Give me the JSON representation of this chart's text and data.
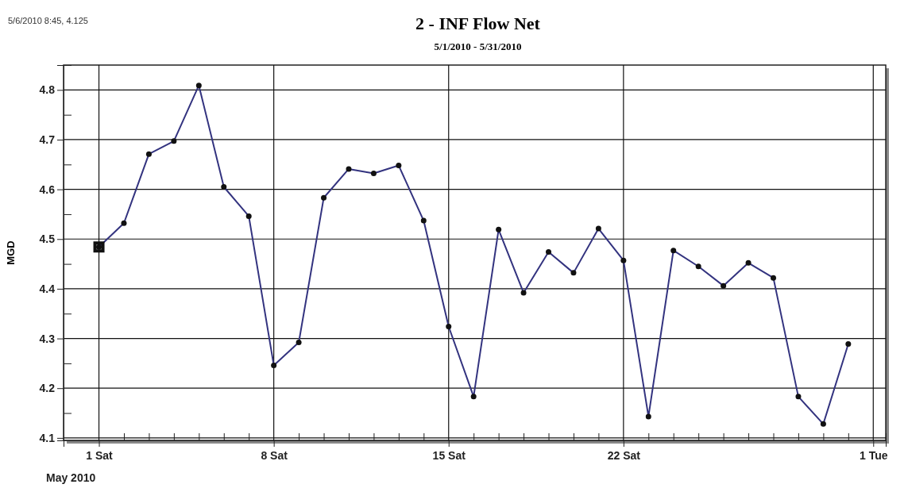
{
  "chart_data": {
    "type": "line",
    "title": "2 - INF Flow Net",
    "subtitle": "5/1/2010 - 5/31/2010",
    "ylabel": "MGD",
    "xlabel": "May 2010",
    "annotations": [
      "5/6/2010 8:45, 4.125"
    ],
    "x": [
      "2010-05-01",
      "2010-05-02",
      "2010-05-03",
      "2010-05-04",
      "2010-05-05",
      "2010-05-06",
      "2010-05-07",
      "2010-05-08",
      "2010-05-09",
      "2010-05-10",
      "2010-05-11",
      "2010-05-12",
      "2010-05-13",
      "2010-05-14",
      "2010-05-15",
      "2010-05-16",
      "2010-05-17",
      "2010-05-18",
      "2010-05-19",
      "2010-05-20",
      "2010-05-21",
      "2010-05-22",
      "2010-05-23",
      "2010-05-24",
      "2010-05-25",
      "2010-05-26",
      "2010-05-27",
      "2010-05-28",
      "2010-05-29",
      "2010-05-30",
      "2010-05-31"
    ],
    "series": [
      {
        "color": "#33337f",
        "values": [
          4.484,
          4.532,
          4.671,
          4.697,
          4.809,
          4.605,
          4.546,
          4.246,
          4.292,
          4.583,
          4.641,
          4.632,
          4.648,
          4.537,
          4.324,
          4.183,
          4.519,
          4.392,
          4.474,
          4.432,
          4.521,
          4.457,
          4.143,
          4.477,
          4.445,
          4.406,
          4.452,
          4.422,
          4.183,
          4.128,
          4.289
        ]
      }
    ],
    "xlim": [
      "2010-04-29T14:00",
      "2010-06-01T12:00"
    ],
    "xticks": [
      {
        "value": "2010-05-01",
        "label": "1 Sat"
      },
      {
        "value": "2010-05-02",
        "label": null
      },
      {
        "value": "2010-05-03",
        "label": null
      },
      {
        "value": "2010-05-04",
        "label": null
      },
      {
        "value": "2010-05-05",
        "label": null
      },
      {
        "value": "2010-05-06",
        "label": null
      },
      {
        "value": "2010-05-07",
        "label": null
      },
      {
        "value": "2010-05-08",
        "label": "8 Sat"
      },
      {
        "value": "2010-05-09",
        "label": null
      },
      {
        "value": "2010-05-10",
        "label": null
      },
      {
        "value": "2010-05-11",
        "label": null
      },
      {
        "value": "2010-05-12",
        "label": null
      },
      {
        "value": "2010-05-13",
        "label": null
      },
      {
        "value": "2010-05-14",
        "label": null
      },
      {
        "value": "2010-05-15",
        "label": "15 Sat"
      },
      {
        "value": "2010-05-16",
        "label": null
      },
      {
        "value": "2010-05-17",
        "label": null
      },
      {
        "value": "2010-05-18",
        "label": null
      },
      {
        "value": "2010-05-19",
        "label": null
      },
      {
        "value": "2010-05-20",
        "label": null
      },
      {
        "value": "2010-05-21",
        "label": null
      },
      {
        "value": "2010-05-22",
        "label": "22 Sat"
      },
      {
        "value": "2010-05-23",
        "label": null
      },
      {
        "value": "2010-05-24",
        "label": null
      },
      {
        "value": "2010-05-25",
        "label": null
      },
      {
        "value": "2010-05-26",
        "label": null
      },
      {
        "value": "2010-05-27",
        "label": null
      },
      {
        "value": "2010-05-28",
        "label": null
      },
      {
        "value": "2010-05-29",
        "label": null
      },
      {
        "value": "2010-05-30",
        "label": null
      },
      {
        "value": "2010-05-31",
        "label": null
      },
      {
        "value": "2010-06-01",
        "label": "1 Tue"
      }
    ],
    "ylim": [
      4.095,
      4.85
    ],
    "yticks": [
      {
        "value": 4.1,
        "label": "4.1"
      },
      {
        "value": 4.15,
        "label": null
      },
      {
        "value": 4.2,
        "label": "4.2"
      },
      {
        "value": 4.25,
        "label": null
      },
      {
        "value": 4.3,
        "label": "4.3"
      },
      {
        "value": 4.35,
        "label": null
      },
      {
        "value": 4.4,
        "label": "4.4"
      },
      {
        "value": 4.45,
        "label": null
      },
      {
        "value": 4.5,
        "label": "4.5"
      },
      {
        "value": 4.55,
        "label": null
      },
      {
        "value": 4.6,
        "label": "4.6"
      },
      {
        "value": 4.65,
        "label": null
      },
      {
        "value": 4.7,
        "label": "4.7"
      },
      {
        "value": 4.75,
        "label": null
      },
      {
        "value": 4.8,
        "label": "4.8"
      }
    ],
    "grid": true,
    "marker": "circle",
    "line_style": "solid"
  }
}
